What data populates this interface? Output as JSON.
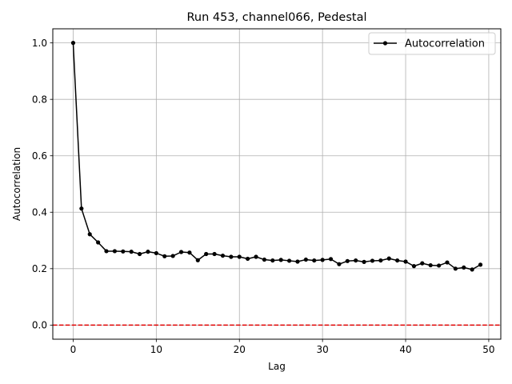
{
  "chart_data": {
    "type": "line",
    "title": "Run 453, channel066, Pedestal",
    "xlabel": "Lag",
    "ylabel": "Autocorrelation",
    "xlim": [
      -2.45,
      51.45
    ],
    "ylim": [
      -0.05,
      1.05
    ],
    "xticks": [
      0,
      10,
      20,
      30,
      40,
      50
    ],
    "xtick_labels": [
      "0",
      "10",
      "20",
      "30",
      "40",
      "50"
    ],
    "yticks": [
      0.0,
      0.2,
      0.4,
      0.6,
      0.8,
      1.0
    ],
    "ytick_labels": [
      "0.0",
      "0.2",
      "0.4",
      "0.6",
      "0.8",
      "1.0"
    ],
    "grid": true,
    "legend_position": "top-right",
    "reference_line": {
      "y": 0.0,
      "style": "dashed",
      "color": "#e00000"
    },
    "series": [
      {
        "name": "Autocorrelation",
        "color": "#000000",
        "marker": "circle",
        "x": [
          0,
          1,
          2,
          3,
          4,
          5,
          6,
          7,
          8,
          9,
          10,
          11,
          12,
          13,
          14,
          15,
          16,
          17,
          18,
          19,
          20,
          21,
          22,
          23,
          24,
          25,
          26,
          27,
          28,
          29,
          30,
          31,
          32,
          33,
          34,
          35,
          36,
          37,
          38,
          39,
          40,
          41,
          42,
          43,
          44,
          45,
          46,
          47,
          48,
          49
        ],
        "values": [
          1.0,
          0.413,
          0.322,
          0.293,
          0.262,
          0.262,
          0.261,
          0.26,
          0.252,
          0.26,
          0.255,
          0.244,
          0.245,
          0.259,
          0.257,
          0.23,
          0.252,
          0.252,
          0.246,
          0.242,
          0.242,
          0.235,
          0.242,
          0.232,
          0.229,
          0.231,
          0.228,
          0.225,
          0.232,
          0.229,
          0.231,
          0.234,
          0.216,
          0.227,
          0.229,
          0.224,
          0.228,
          0.229,
          0.236,
          0.229,
          0.225,
          0.209,
          0.219,
          0.212,
          0.211,
          0.222,
          0.2,
          0.204,
          0.197,
          0.214
        ]
      }
    ]
  }
}
